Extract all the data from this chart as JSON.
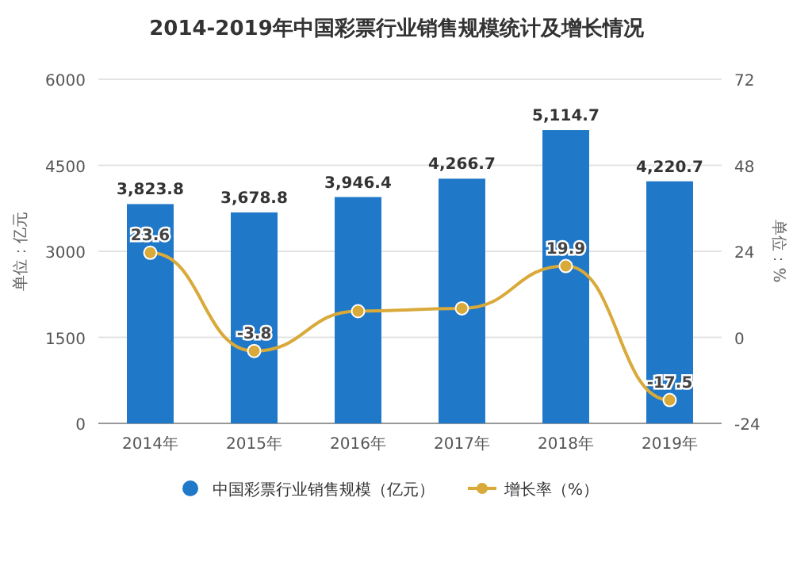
{
  "chart_data": {
    "type": "bar",
    "title": "2014-2019年中国彩票行业销售规模统计及增长情况",
    "categories": [
      "2014年",
      "2015年",
      "2016年",
      "2017年",
      "2018年",
      "2019年"
    ],
    "ylabel": "单位：亿元",
    "y2label": "单位：%",
    "ylim": [
      0,
      6000
    ],
    "yticks": [
      0,
      1500,
      3000,
      4500,
      6000
    ],
    "y2lim": [
      -24,
      72
    ],
    "y2ticks": [
      -24,
      0,
      24,
      48,
      72
    ],
    "grid": "y",
    "legend": "bottom",
    "marker": "circle",
    "series": [
      {
        "name": "中国彩票行业销售规模（亿元）",
        "color": "#1f78c8",
        "values": [
          3823.8,
          3678.8,
          3946.4,
          4266.7,
          5114.7,
          4220.7
        ],
        "value_labels": [
          "3,823.8",
          "3,678.8",
          "3,946.4",
          "4,266.7",
          "5,114.7",
          "4,220.7"
        ]
      },
      {
        "name": "增长率（%）",
        "type": "line",
        "axis": "y2",
        "color": "#d9a93a",
        "values": [
          23.6,
          -3.8,
          7.3,
          8.1,
          19.9,
          -17.5
        ],
        "value_labels": [
          "23.6",
          "-3.8",
          null,
          null,
          "19.9",
          "-17.5"
        ]
      }
    ]
  }
}
